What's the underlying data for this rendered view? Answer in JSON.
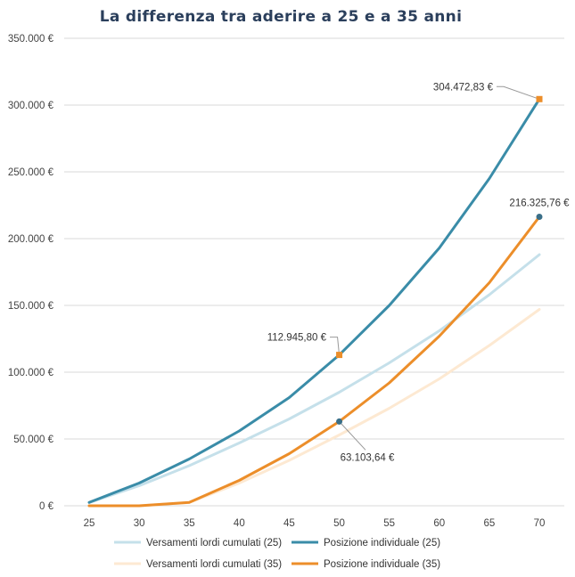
{
  "chart_data": {
    "type": "line",
    "title": "La differenza tra aderire a 25 e a 35 anni",
    "xlabel": "",
    "ylabel": "",
    "x": [
      25,
      30,
      35,
      40,
      45,
      50,
      55,
      60,
      65,
      70
    ],
    "y_ticks": [
      "0 €",
      "50.000 €",
      "100.000 €",
      "150.000 €",
      "200.000 €",
      "250.000 €",
      "300.000 €",
      "350.000 €"
    ],
    "ylim": [
      0,
      350000
    ],
    "grid": true,
    "legend_position": "bottom",
    "series": [
      {
        "name": "Versamenti lordi cumulati (25)",
        "color": "#c5e0ea",
        "width": 3,
        "values": [
          2400,
          15000,
          30000,
          47000,
          65000,
          85000,
          107000,
          131000,
          158000,
          188000
        ]
      },
      {
        "name": "Posizione individuale (25)",
        "color": "#3a8ca8",
        "width": 3,
        "values": [
          2500,
          17000,
          35000,
          56000,
          81000,
          112945.8,
          150000,
          193000,
          245000,
          304472.83
        ]
      },
      {
        "name": "Versamenti lordi cumulati (35)",
        "color": "#fde9d2",
        "width": 3,
        "values": [
          0,
          0,
          2400,
          17000,
          34000,
          53000,
          73000,
          95000,
          120000,
          147000
        ]
      },
      {
        "name": "Posizione individuale (35)",
        "color": "#ec8e2a",
        "width": 3,
        "values": [
          0,
          0,
          2500,
          19000,
          39000,
          63103.64,
          92000,
          127000,
          167000,
          216325.76
        ]
      }
    ],
    "annotations": [
      {
        "text": "112.945,80 €",
        "x": 50,
        "y": 112945.8,
        "marker": "square",
        "color": "#ec8e2a",
        "side": "left"
      },
      {
        "text": "63.103,64 €",
        "x": 50,
        "y": 63103.64,
        "marker": "circle",
        "color": "#3a6f88",
        "side": "below"
      },
      {
        "text": "304.472,83 €",
        "x": 70,
        "y": 304472.83,
        "marker": "square",
        "color": "#ec8e2a",
        "side": "left"
      },
      {
        "text": "216.325,76 €",
        "x": 70,
        "y": 216325.76,
        "marker": "circle",
        "color": "#3a6f88",
        "side": "above"
      }
    ]
  }
}
